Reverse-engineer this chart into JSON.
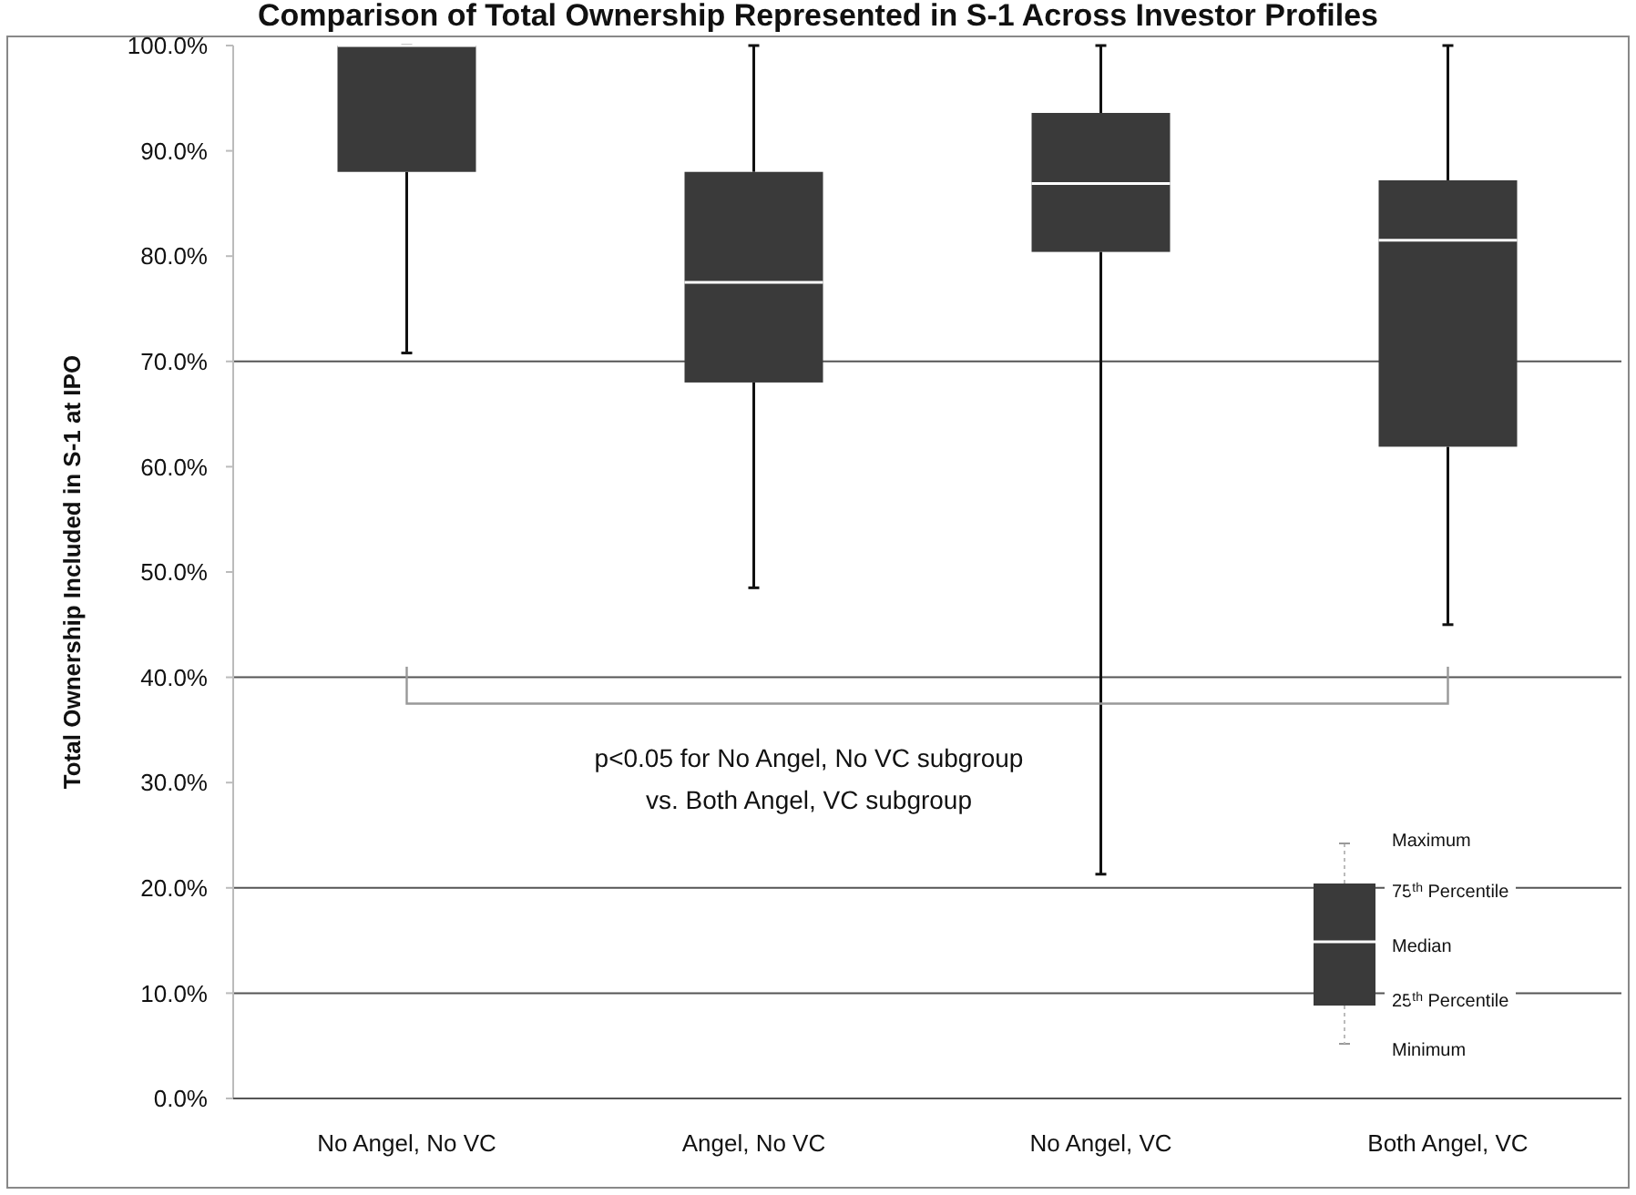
{
  "chart_data": {
    "type": "box",
    "title": "Comparison of Total Ownership Represented in S-1 Across Investor Profiles",
    "ylabel": "Total Ownership Included in S-1 at IPO",
    "categories": [
      "No Angel, No VC",
      "Angel, No VC",
      "No Angel, VC",
      "Both Angel, VC"
    ],
    "boxes": [
      {
        "low": 70.8,
        "q1": 88,
        "median": 100,
        "q3": 100,
        "high": 100
      },
      {
        "low": 48.5,
        "q1": 68,
        "median": 77.5,
        "q3": 88,
        "high": 100
      },
      {
        "low": 21.3,
        "q1": 80.4,
        "median": 86.9,
        "q3": 93.6,
        "high": 100
      },
      {
        "low": 45,
        "q1": 61.9,
        "median": 81.5,
        "q3": 87.2,
        "high": 100
      }
    ],
    "color": "#3a3a3a",
    "ylim": [
      0,
      100
    ],
    "yticks": [
      {
        "value": 0,
        "label": "0.0%"
      },
      {
        "value": 10,
        "label": "10.0%"
      },
      {
        "value": 20,
        "label": "20.0%"
      },
      {
        "value": 30,
        "label": "30.0%"
      },
      {
        "value": 40,
        "label": "40.0%"
      },
      {
        "value": 50,
        "label": "50.0%"
      },
      {
        "value": 60,
        "label": "60.0%"
      },
      {
        "value": 70,
        "label": "70.0%"
      },
      {
        "value": 80,
        "label": "80.0%"
      },
      {
        "value": 90,
        "label": "90.0%"
      },
      {
        "value": 100,
        "label": "100.0%"
      }
    ],
    "grid": false,
    "ref_lines": [
      {
        "axis": "y",
        "value": 70,
        "color": "#555555"
      },
      {
        "axis": "y",
        "value": 40,
        "color": "#555555"
      },
      {
        "axis": "y",
        "value": 20,
        "color": "#555555"
      },
      {
        "axis": "y",
        "value": 10,
        "color": "#555555"
      }
    ],
    "annotations": [
      "p<0.05 for No Angel, No VC subgroup",
      "vs. Both Angel, VC subgroup",
      "Maximum",
      "75$^{th}$ Percentile",
      "Median",
      "25$^{th}$ Percentile",
      "Minimum"
    ]
  }
}
